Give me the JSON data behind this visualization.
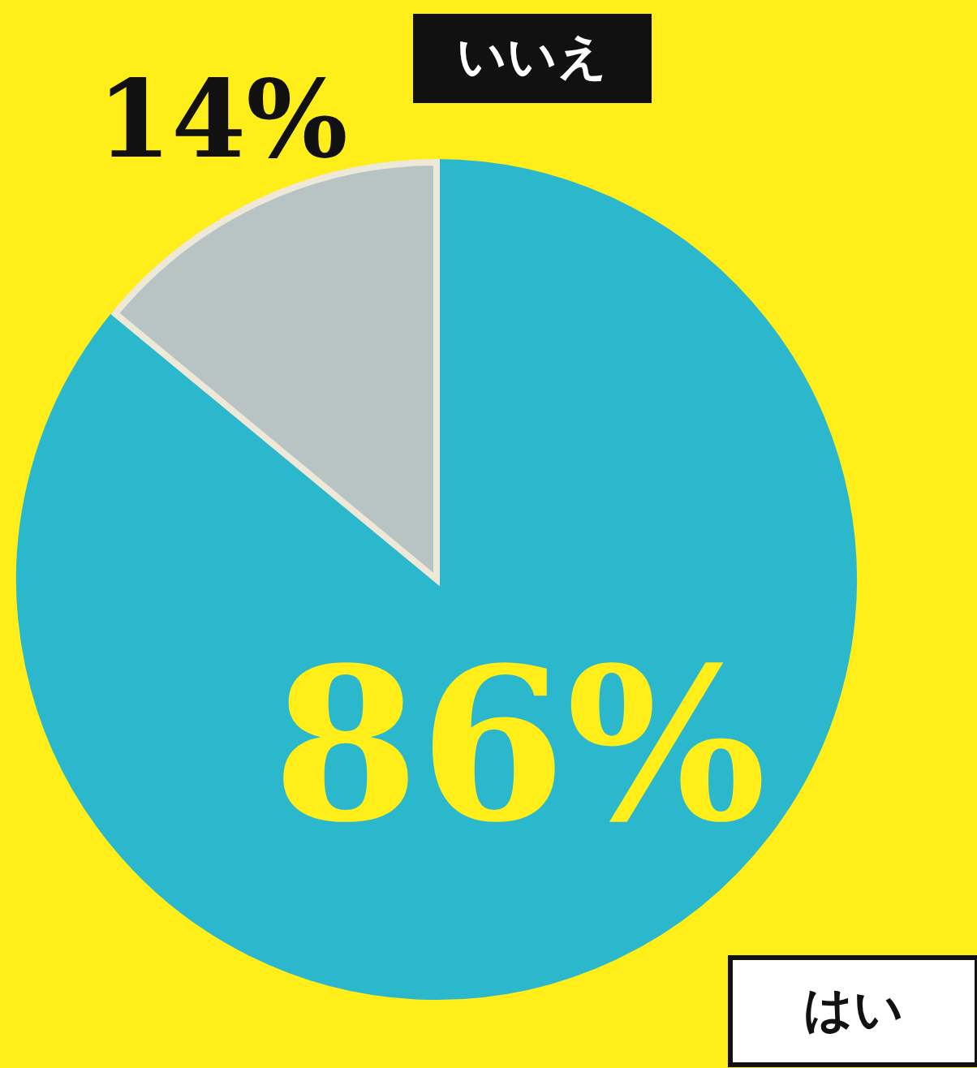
{
  "chart_data": {
    "type": "pie",
    "categories": [
      "はい",
      "いいえ"
    ],
    "values": [
      86,
      14
    ],
    "colors": [
      "#2bb7cc",
      "#b8c4c4"
    ],
    "value_labels": [
      "86%",
      "14%"
    ]
  }
}
